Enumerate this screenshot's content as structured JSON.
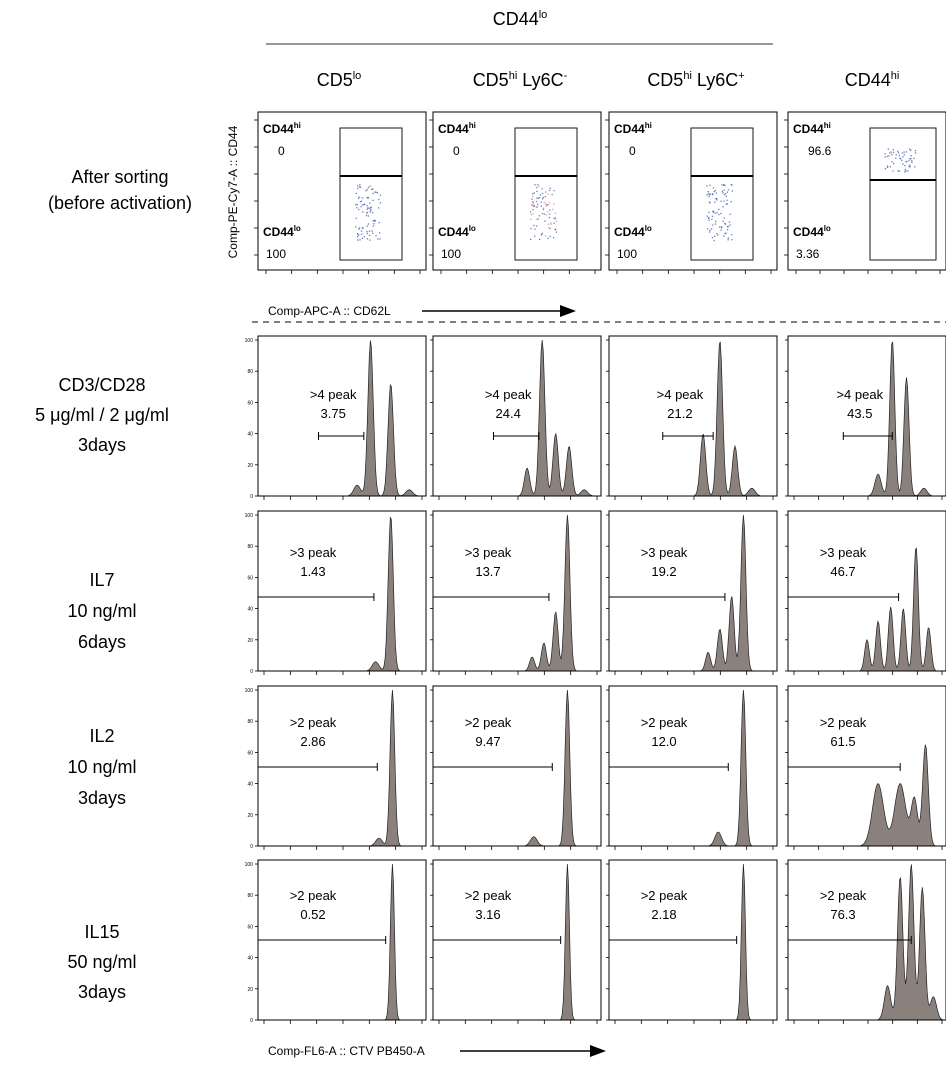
{
  "header": {
    "group_label_base": "CD44",
    "group_label_sup": "lo",
    "columns": [
      {
        "base": "CD5",
        "sup": "lo",
        "suffix": "",
        "suffix_sup": ""
      },
      {
        "base": "CD5",
        "sup": "hi",
        "suffix": " Ly6C",
        "suffix_sup": "-"
      },
      {
        "base": "CD5",
        "sup": "hi",
        "suffix": " Ly6C",
        "suffix_sup": "+"
      },
      {
        "base": "CD44",
        "sup": "hi",
        "suffix": "",
        "suffix_sup": ""
      }
    ]
  },
  "rows": [
    {
      "lines": [
        "After sorting",
        "(before activation)"
      ]
    },
    {
      "lines": [
        "CD3/CD28",
        "5 μg/ml / 2 μg/ml",
        "3days"
      ]
    },
    {
      "lines": [
        "IL7",
        "10 ng/ml",
        "6days"
      ]
    },
    {
      "lines": [
        "IL2",
        "10 ng/ml",
        "3days"
      ]
    },
    {
      "lines": [
        "IL15",
        "50 ng/ml",
        "3days"
      ]
    }
  ],
  "axes": {
    "sort_y_label": "Comp-PE-Cy7-A :: CD44",
    "sort_x_label": "Comp-APC-A :: CD62L",
    "hist_x_label": "Comp-FL6-A :: CTV PB450-A"
  },
  "colors": {
    "histogram_fill": "#8a817d",
    "dot_color": "#3a52a8",
    "dot_color_alt": "#d98080"
  },
  "chart_data": [
    {
      "type": "scatter",
      "title": "After sorting (before activation)",
      "xlabel": "Comp-APC-A :: CD62L",
      "ylabel": "Comp-PE-Cy7-A :: CD44",
      "gate_labels": {
        "hi_base": "CD44",
        "hi_sup": "hi",
        "lo_base": "CD44",
        "lo_sup": "lo"
      },
      "panels": [
        {
          "column": "CD5lo",
          "cd44hi_pct": "0",
          "cd44lo_pct": "100"
        },
        {
          "column": "CD5hi Ly6C-",
          "cd44hi_pct": "0",
          "cd44lo_pct": "100"
        },
        {
          "column": "CD5hi Ly6C+",
          "cd44hi_pct": "0",
          "cd44lo_pct": "100"
        },
        {
          "column": "CD44hi",
          "cd44hi_pct": "96.6",
          "cd44lo_pct": "3.36"
        }
      ]
    },
    {
      "type": "area",
      "title": "CD3/CD28 5 μg/ml / 2 μg/ml 3days",
      "xlabel": "Comp-FL6-A :: CTV PB450-A",
      "x_scale": "log",
      "ylim": [
        0,
        100
      ],
      "yticks": [
        0,
        20,
        40,
        60,
        80,
        100
      ],
      "panels": [
        {
          "column": "CD5lo",
          "gate_label": ">4 peak",
          "gate_value": "3.75",
          "peaks": [
            {
              "x": 0.67,
              "h": 100,
              "w": 0.016
            },
            {
              "x": 0.79,
              "h": 72,
              "w": 0.016
            },
            {
              "x": 0.59,
              "h": 7,
              "w": 0.02
            },
            {
              "x": 0.9,
              "h": 4,
              "w": 0.02
            }
          ]
        },
        {
          "column": "CD5hi Ly6C-",
          "gate_label": ">4 peak",
          "gate_value": "24.4",
          "peaks": [
            {
              "x": 0.65,
              "h": 100,
              "w": 0.016
            },
            {
              "x": 0.73,
              "h": 40,
              "w": 0.016
            },
            {
              "x": 0.81,
              "h": 32,
              "w": 0.016
            },
            {
              "x": 0.56,
              "h": 18,
              "w": 0.016
            },
            {
              "x": 0.9,
              "h": 4,
              "w": 0.02
            }
          ]
        },
        {
          "column": "CD5hi Ly6C+",
          "gate_label": ">4 peak",
          "gate_value": "21.2",
          "peaks": [
            {
              "x": 0.66,
              "h": 100,
              "w": 0.016
            },
            {
              "x": 0.56,
              "h": 40,
              "w": 0.016
            },
            {
              "x": 0.75,
              "h": 32,
              "w": 0.016
            },
            {
              "x": 0.85,
              "h": 5,
              "w": 0.02
            }
          ]
        },
        {
          "column": "CD44hi",
          "gate_label": ">4 peak",
          "gate_value": "43.5",
          "peaks": [
            {
              "x": 0.66,
              "h": 100,
              "w": 0.016
            },
            {
              "x": 0.75,
              "h": 76,
              "w": 0.016
            },
            {
              "x": 0.57,
              "h": 14,
              "w": 0.02
            },
            {
              "x": 0.86,
              "h": 5,
              "w": 0.02
            }
          ]
        }
      ]
    },
    {
      "type": "area",
      "title": "IL7 10 ng/ml 6days",
      "xlabel": "Comp-FL6-A :: CTV PB450-A",
      "x_scale": "log",
      "ylim": [
        0,
        100
      ],
      "yticks": [
        0,
        20,
        40,
        60,
        80,
        100
      ],
      "panels": [
        {
          "column": "CD5lo",
          "gate_label": ">3 peak",
          "gate_value": "1.43",
          "peaks": [
            {
              "x": 0.79,
              "h": 100,
              "w": 0.015
            },
            {
              "x": 0.7,
              "h": 6,
              "w": 0.02
            }
          ]
        },
        {
          "column": "CD5hi Ly6C-",
          "gate_label": ">3 peak",
          "gate_value": "13.7",
          "peaks": [
            {
              "x": 0.8,
              "h": 100,
              "w": 0.015
            },
            {
              "x": 0.73,
              "h": 38,
              "w": 0.015
            },
            {
              "x": 0.66,
              "h": 18,
              "w": 0.015
            },
            {
              "x": 0.59,
              "h": 9,
              "w": 0.015
            }
          ]
        },
        {
          "column": "CD5hi Ly6C+",
          "gate_label": ">3 peak",
          "gate_value": "19.2",
          "peaks": [
            {
              "x": 0.8,
              "h": 100,
              "w": 0.015
            },
            {
              "x": 0.73,
              "h": 48,
              "w": 0.015
            },
            {
              "x": 0.66,
              "h": 27,
              "w": 0.015
            },
            {
              "x": 0.59,
              "h": 12,
              "w": 0.015
            }
          ]
        },
        {
          "column": "CD44hi",
          "gate_label": ">3 peak",
          "gate_value": "46.7",
          "peaks": [
            {
              "x": 0.81,
              "h": 80,
              "w": 0.015
            },
            {
              "x": 0.73,
              "h": 40,
              "w": 0.015
            },
            {
              "x": 0.65,
              "h": 41,
              "w": 0.015
            },
            {
              "x": 0.57,
              "h": 32,
              "w": 0.015
            },
            {
              "x": 0.5,
              "h": 20,
              "w": 0.015
            },
            {
              "x": 0.89,
              "h": 28,
              "w": 0.015
            }
          ]
        }
      ]
    },
    {
      "type": "area",
      "title": "IL2 10 ng/ml 3days",
      "xlabel": "Comp-FL6-A :: CTV PB450-A",
      "x_scale": "log",
      "ylim": [
        0,
        100
      ],
      "yticks": [
        0,
        20,
        40,
        60,
        80,
        100
      ],
      "panels": [
        {
          "column": "CD5lo",
          "gate_label": ">2 peak",
          "gate_value": "2.86",
          "peaks": [
            {
              "x": 0.8,
              "h": 100,
              "w": 0.014
            },
            {
              "x": 0.72,
              "h": 5,
              "w": 0.02
            }
          ]
        },
        {
          "column": "CD5hi Ly6C-",
          "gate_label": ">2 peak",
          "gate_value": "9.47",
          "peaks": [
            {
              "x": 0.8,
              "h": 100,
              "w": 0.014
            },
            {
              "x": 0.6,
              "h": 6,
              "w": 0.02
            }
          ]
        },
        {
          "column": "CD5hi Ly6C+",
          "gate_label": ">2 peak",
          "gate_value": "12.0",
          "peaks": [
            {
              "x": 0.8,
              "h": 100,
              "w": 0.014
            },
            {
              "x": 0.65,
              "h": 9,
              "w": 0.02
            }
          ]
        },
        {
          "column": "CD44hi",
          "gate_label": ">2 peak",
          "gate_value": "61.5",
          "peaks": [
            {
              "x": 0.87,
              "h": 65,
              "w": 0.018
            },
            {
              "x": 0.71,
              "h": 40,
              "w": 0.035
            },
            {
              "x": 0.57,
              "h": 40,
              "w": 0.035
            },
            {
              "x": 0.8,
              "h": 30,
              "w": 0.02
            }
          ]
        }
      ]
    },
    {
      "type": "area",
      "title": "IL15 50 ng/ml 3days",
      "xlabel": "Comp-FL6-A :: CTV PB450-A",
      "x_scale": "log",
      "ylim": [
        0,
        100
      ],
      "yticks": [
        0,
        20,
        40,
        60,
        80,
        100
      ],
      "panels": [
        {
          "column": "CD5lo",
          "gate_label": ">2 peak",
          "gate_value": "0.52",
          "peaks": [
            {
              "x": 0.8,
              "h": 100,
              "w": 0.012
            }
          ]
        },
        {
          "column": "CD5hi Ly6C-",
          "gate_label": ">2 peak",
          "gate_value": "3.16",
          "peaks": [
            {
              "x": 0.8,
              "h": 100,
              "w": 0.012
            }
          ]
        },
        {
          "column": "CD5hi Ly6C+",
          "gate_label": ">2 peak",
          "gate_value": "2.18",
          "peaks": [
            {
              "x": 0.8,
              "h": 100,
              "w": 0.012
            }
          ]
        },
        {
          "column": "CD44hi",
          "gate_label": ">2 peak",
          "gate_value": "76.3",
          "peaks": [
            {
              "x": 0.78,
              "h": 100,
              "w": 0.017
            },
            {
              "x": 0.71,
              "h": 92,
              "w": 0.017
            },
            {
              "x": 0.85,
              "h": 85,
              "w": 0.017
            },
            {
              "x": 0.63,
              "h": 22,
              "w": 0.02
            },
            {
              "x": 0.92,
              "h": 15,
              "w": 0.02
            }
          ]
        }
      ]
    }
  ]
}
